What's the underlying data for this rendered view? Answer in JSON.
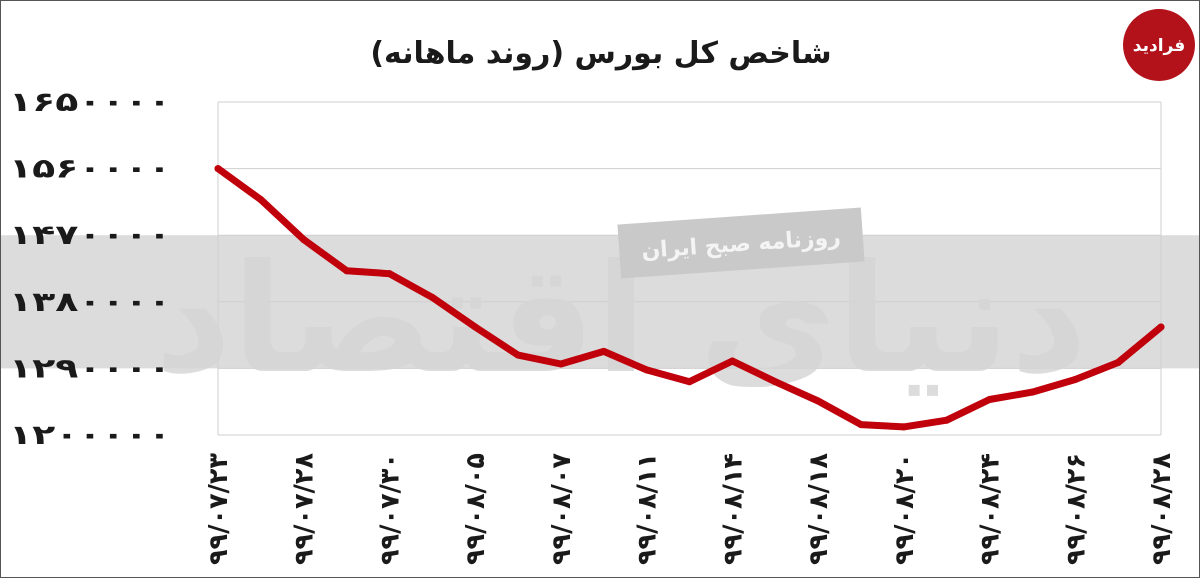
{
  "colors": {
    "line": "#c0000b",
    "band": "#dcdcdc",
    "grid": "#cfcfcf",
    "logo": "#b3121b"
  },
  "watermark": {
    "main": "دنیای اقتصاد",
    "stamp": "روزنامه صبح ایران"
  },
  "logo": {
    "text": "فرادید"
  },
  "chart_data": {
    "type": "line",
    "title": "شاخص کل بورس (روند ماهانه)",
    "xlabel": "",
    "ylabel": "",
    "ylim": [
      1200000,
      1650000
    ],
    "yticks": [
      1650000,
      1560000,
      1470000,
      1380000,
      1290000,
      1200000
    ],
    "ytick_labels": [
      "۱۶۵۰۰۰۰",
      "۱۵۶۰۰۰۰",
      "۱۴۷۰۰۰۰",
      "۱۳۸۰۰۰۰",
      "۱۲۹۰۰۰۰",
      "۱۲۰۰۰۰۰"
    ],
    "xtick_labels": [
      "۹۹/۰۷/۲۳",
      "۹۹/۰۷/۲۸",
      "۹۹/۰۷/۳۰",
      "۹۹/۰۸/۰۵",
      "۹۹/۰۸/۰۷",
      "۹۹/۰۸/۱۱",
      "۹۹/۰۸/۱۴",
      "۹۹/۰۸/۱۸",
      "۹۹/۰۸/۲۰",
      "۹۹/۰۸/۲۴",
      "۹۹/۰۸/۲۶",
      "۹۹/۰۸/۲۸"
    ],
    "band": [
      1290000,
      1470000
    ],
    "series": [
      {
        "values": [
          1560000,
          1518000,
          1464000,
          1422000,
          1418000,
          1386000,
          1346000,
          1308000,
          1296000,
          1313000,
          1288000,
          1272000,
          1300000,
          1272000,
          1246000,
          1214000,
          1211000,
          1220000,
          1248000,
          1258000,
          1275000,
          1298000,
          1346000
        ]
      }
    ]
  }
}
